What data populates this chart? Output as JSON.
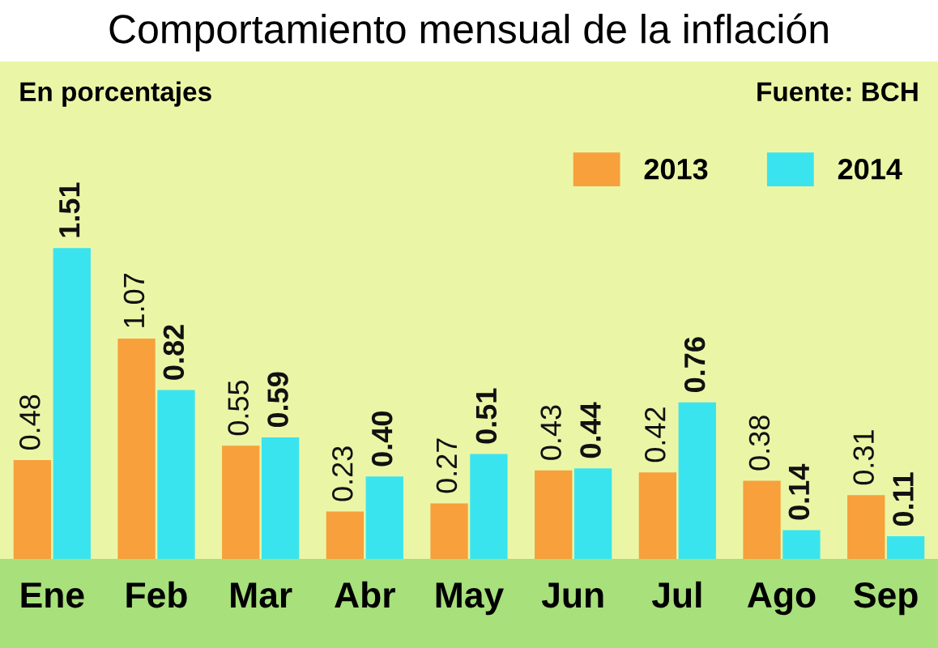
{
  "chart_data": {
    "type": "bar",
    "title": "Comportamiento mensual de la inflación",
    "subtitle": "En porcentajes",
    "annotations": [
      "Fuente: BCH"
    ],
    "categories": [
      "Ene",
      "Feb",
      "Mar",
      "Abr",
      "May",
      "Jun",
      "Jul",
      "Ago",
      "Sep"
    ],
    "series": [
      {
        "name": "2013",
        "color": "#f7a03c",
        "values": [
          0.48,
          1.07,
          0.55,
          0.23,
          0.27,
          0.43,
          0.42,
          0.38,
          0.31
        ],
        "value_labels": [
          "0.48",
          "1.07",
          "0.55",
          "0.23",
          "0.27",
          "0.43",
          "0.42",
          "0.38",
          "0.31"
        ]
      },
      {
        "name": "2014",
        "color": "#3ae4ee",
        "values": [
          1.51,
          0.82,
          0.59,
          0.4,
          0.51,
          0.44,
          0.76,
          0.14,
          0.11
        ],
        "value_labels": [
          "1.51",
          "0.82",
          "0.59",
          "0.40",
          "0.51",
          "0.44",
          "0.76",
          "0.14",
          "0.11"
        ]
      }
    ],
    "data_labels": true,
    "legend": "top right",
    "grid": false
  }
}
